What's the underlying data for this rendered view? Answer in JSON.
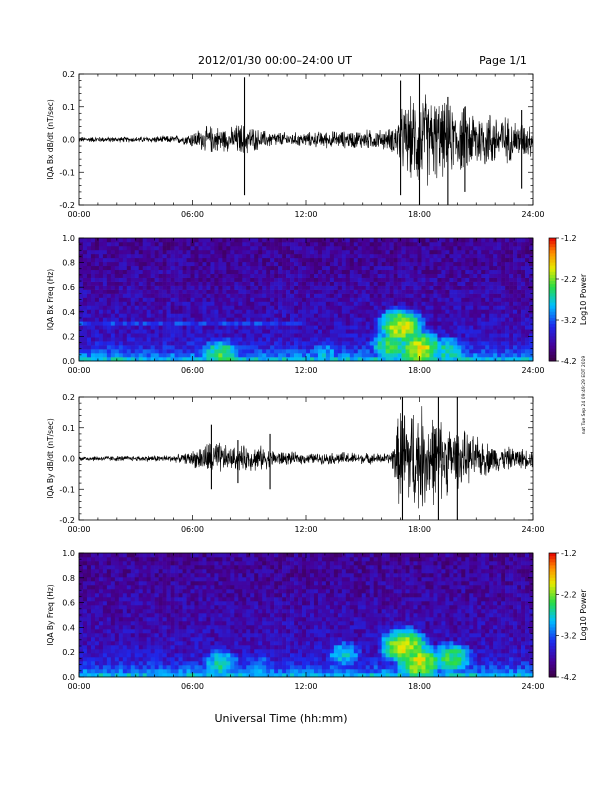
{
  "header": {
    "title": "2012/01/30  00:00–24:00 UT",
    "page": "Page 1/1",
    "side_note": "nat Tue Sep 24 09:49:29 EDT 2019"
  },
  "footer": {
    "xlabel": "Universal Time (hh:mm)"
  },
  "chart_data": [
    {
      "type": "line",
      "name": "bx-waveform",
      "ylabel": "IQA Bx dB/dt (nT/sec)",
      "xlim": [
        0,
        24
      ],
      "ylim": [
        -0.2,
        0.2
      ],
      "x_ticks": [
        "00:00",
        "06:00",
        "12:00",
        "18:00",
        "24:00"
      ],
      "y_ticks": [
        "-0.2",
        "-0.1",
        "0.0",
        "0.1",
        "0.2"
      ],
      "envelope": {
        "x": [
          0,
          1,
          2,
          3,
          4,
          5,
          5.5,
          6,
          6.5,
          7,
          7.5,
          8,
          8.5,
          9,
          9.5,
          10,
          11,
          12,
          13,
          14,
          15,
          16,
          16.5,
          17,
          17.5,
          18,
          18.5,
          19,
          19.5,
          20,
          21,
          22,
          23,
          24
        ],
        "amp": [
          0.01,
          0.01,
          0.01,
          0.01,
          0.012,
          0.014,
          0.016,
          0.03,
          0.04,
          0.05,
          0.045,
          0.04,
          0.06,
          0.05,
          0.035,
          0.03,
          0.025,
          0.025,
          0.03,
          0.03,
          0.035,
          0.035,
          0.04,
          0.1,
          0.14,
          0.18,
          0.16,
          0.14,
          0.12,
          0.12,
          0.11,
          0.1,
          0.07,
          0.06
        ]
      },
      "spikes": [
        {
          "x": 8.75,
          "min": -0.17,
          "max": 0.19
        },
        {
          "x": 17.0,
          "min": -0.17,
          "max": 0.18
        },
        {
          "x": 18.0,
          "min": -0.2,
          "max": 0.2
        },
        {
          "x": 19.5,
          "min": -0.2,
          "max": 0.13
        },
        {
          "x": 20.4,
          "min": -0.16,
          "max": 0.1
        },
        {
          "x": 23.4,
          "min": -0.15,
          "max": 0.09
        }
      ]
    },
    {
      "type": "heatmap",
      "name": "bx-spectrogram",
      "ylabel": "IQA Bx Freq (Hz)",
      "xlim": [
        0,
        24
      ],
      "ylim": [
        0,
        1.0
      ],
      "x_ticks": [
        "00:00",
        "06:00",
        "12:00",
        "18:00",
        "24:00"
      ],
      "y_ticks": [
        "0.0",
        "0.2",
        "0.4",
        "0.6",
        "0.8",
        "1.0"
      ],
      "colorbar": {
        "label": "Log10 Power",
        "range": [
          -4.2,
          -1.2
        ],
        "ticks": [
          "-1.2",
          "-2.2",
          "-3.2",
          "-4.2"
        ]
      },
      "features": [
        {
          "kind": "band",
          "freq": 0.3,
          "x_range": [
            0,
            12
          ],
          "level": -3.2
        },
        {
          "kind": "blob",
          "t": 7.5,
          "f": 0.05,
          "level": -2.4
        },
        {
          "kind": "blob",
          "t": 13.0,
          "f": 0.05,
          "level": -2.9
        },
        {
          "kind": "blob",
          "t": 16.5,
          "f": 0.12,
          "level": -2.4
        },
        {
          "kind": "blob",
          "t": 17.0,
          "f": 0.28,
          "level": -2.0
        },
        {
          "kind": "blob",
          "t": 18.0,
          "f": 0.1,
          "level": -2.0
        },
        {
          "kind": "blob",
          "t": 19.5,
          "f": 0.08,
          "level": -2.6
        }
      ]
    },
    {
      "type": "line",
      "name": "by-waveform",
      "ylabel": "IQA By dB/dt (nT/sec)",
      "xlim": [
        0,
        24
      ],
      "ylim": [
        -0.2,
        0.2
      ],
      "x_ticks": [
        "00:00",
        "06:00",
        "12:00",
        "18:00",
        "24:00"
      ],
      "y_ticks": [
        "-0.2",
        "-0.1",
        "0.0",
        "0.1",
        "0.2"
      ],
      "envelope": {
        "x": [
          0,
          1,
          2,
          3,
          4,
          5,
          5.5,
          6,
          6.5,
          7,
          7.5,
          8,
          8.5,
          9,
          9.5,
          10,
          11,
          12,
          13,
          14,
          15,
          16,
          16.5,
          17,
          17.5,
          18,
          18.5,
          19,
          19.5,
          20,
          21,
          22,
          23,
          24
        ],
        "amp": [
          0.01,
          0.01,
          0.01,
          0.01,
          0.012,
          0.014,
          0.016,
          0.03,
          0.05,
          0.07,
          0.06,
          0.04,
          0.05,
          0.045,
          0.05,
          0.035,
          0.025,
          0.02,
          0.02,
          0.025,
          0.02,
          0.02,
          0.02,
          0.2,
          0.2,
          0.2,
          0.18,
          0.16,
          0.13,
          0.11,
          0.08,
          0.05,
          0.04,
          0.035
        ]
      },
      "spikes": [
        {
          "x": 7.0,
          "min": -0.1,
          "max": 0.11
        },
        {
          "x": 8.4,
          "min": -0.08,
          "max": 0.06
        },
        {
          "x": 10.1,
          "min": -0.1,
          "max": 0.08
        },
        {
          "x": 17.1,
          "min": -0.2,
          "max": 0.2
        },
        {
          "x": 19.0,
          "min": -0.2,
          "max": 0.2
        },
        {
          "x": 20.0,
          "min": -0.2,
          "max": 0.2
        }
      ]
    },
    {
      "type": "heatmap",
      "name": "by-spectrogram",
      "ylabel": "IQA By Freq (Hz)",
      "xlim": [
        0,
        24
      ],
      "ylim": [
        0,
        1.0
      ],
      "x_ticks": [
        "00:00",
        "06:00",
        "12:00",
        "18:00",
        "24:00"
      ],
      "y_ticks": [
        "0.0",
        "0.2",
        "0.4",
        "0.6",
        "0.8",
        "1.0"
      ],
      "colorbar": {
        "label": "Log10 Power",
        "range": [
          -4.2,
          -1.2
        ],
        "ticks": [
          "-1.2",
          "-2.2",
          "-3.2",
          "-4.2"
        ]
      },
      "features": [
        {
          "kind": "blob",
          "t": 7.5,
          "f": 0.1,
          "level": -2.6
        },
        {
          "kind": "blob",
          "t": 9.5,
          "f": 0.07,
          "level": -2.9
        },
        {
          "kind": "blob",
          "t": 14.0,
          "f": 0.18,
          "level": -2.8
        },
        {
          "kind": "blob",
          "t": 17.2,
          "f": 0.25,
          "level": -2.0
        },
        {
          "kind": "blob",
          "t": 18.0,
          "f": 0.12,
          "level": -2.0
        },
        {
          "kind": "blob",
          "t": 19.7,
          "f": 0.15,
          "level": -2.4
        }
      ]
    }
  ]
}
